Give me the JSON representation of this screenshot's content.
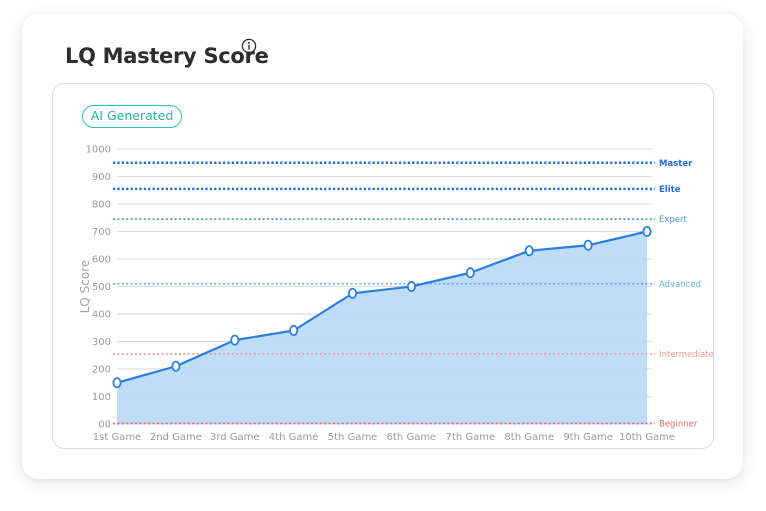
{
  "header": {
    "title": "LQ Mastery Score",
    "info_icon": "info-icon"
  },
  "badge": {
    "label": "AI Generated"
  },
  "colors": {
    "line": "#2a7fe3",
    "fill": "#bcdaf8",
    "grid": "#d9d9d9",
    "master": "#1f6fd6",
    "elite": "#1f6fd6",
    "expert": "#4a97ea",
    "advanced": "#6eaaf0",
    "intermediate": "#f29a9a",
    "beginner": "#e06a6a"
  },
  "chart_data": {
    "type": "area",
    "title": "LQ Mastery Score",
    "xlabel": "",
    "ylabel": "LQ Score",
    "ylim": [
      0,
      1000
    ],
    "y_ticks": [
      "00",
      "100",
      "200",
      "300",
      "400",
      "500",
      "600",
      "700",
      "800",
      "900",
      "1000"
    ],
    "y_tick_values": [
      0,
      100,
      200,
      300,
      400,
      500,
      600,
      700,
      800,
      900,
      1000
    ],
    "categories": [
      "1st Game",
      "2nd Game",
      "3rd Game",
      "4th Game",
      "5th Game",
      "6th Game",
      "7th Game",
      "8th Game",
      "9th Game",
      "10th Game"
    ],
    "series": [
      {
        "name": "LQ Score",
        "values": [
          150,
          210,
          305,
          340,
          475,
          500,
          550,
          630,
          650,
          700
        ]
      }
    ],
    "levels": [
      {
        "name": "Master",
        "key": "master",
        "value": 950,
        "bold": true
      },
      {
        "name": "Elite",
        "key": "elite",
        "value": 855,
        "bold": true
      },
      {
        "name": "Expert",
        "key": "expert",
        "value": 745,
        "bold": false
      },
      {
        "name": "Advanced",
        "key": "advanced",
        "value": 510,
        "bold": false
      },
      {
        "name": "Intermediate",
        "key": "intermediate",
        "value": 255,
        "bold": false
      },
      {
        "name": "Beginner",
        "key": "beginner",
        "value": 0,
        "bold": false
      }
    ],
    "grid": true
  }
}
